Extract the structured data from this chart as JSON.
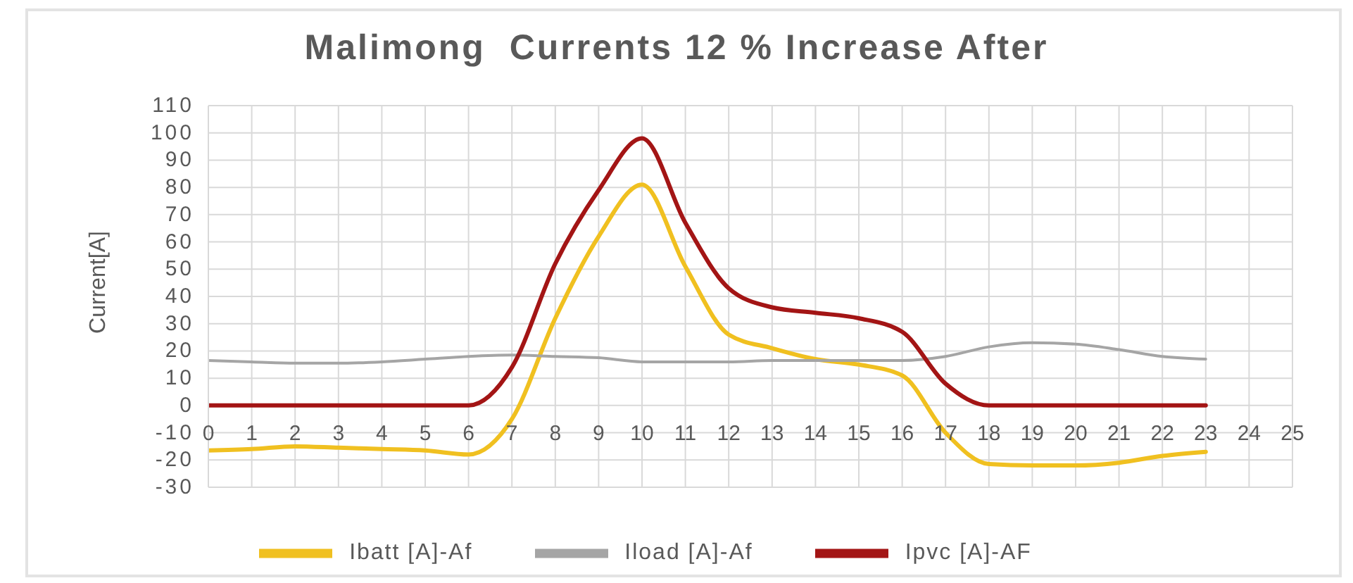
{
  "chart_data": {
    "type": "line",
    "title": "Malimong  Currents 12 % Increase After",
    "ylabel": "Current[A]",
    "x": [
      0,
      1,
      2,
      3,
      4,
      5,
      6,
      7,
      8,
      9,
      10,
      11,
      12,
      13,
      14,
      15,
      16,
      17,
      18,
      19,
      20,
      21,
      22,
      23
    ],
    "xlim": [
      0,
      25
    ],
    "xticks": [
      0,
      1,
      2,
      3,
      4,
      5,
      6,
      7,
      8,
      9,
      10,
      11,
      12,
      13,
      14,
      15,
      16,
      17,
      18,
      19,
      20,
      21,
      22,
      23,
      24,
      25
    ],
    "ylim": [
      -30,
      110
    ],
    "yticks": [
      -30,
      -20,
      -10,
      0,
      10,
      20,
      30,
      40,
      50,
      60,
      70,
      80,
      90,
      100,
      110
    ],
    "grid": true,
    "legend": "bottom",
    "marker": "none",
    "line_style": "solid",
    "series": [
      {
        "name": "Ibatt [A]-Af",
        "color": "#f0c020",
        "values": [
          -16.5,
          -16,
          -15,
          -15.5,
          -16,
          -16.5,
          -18,
          -5,
          32,
          62,
          81,
          51,
          26,
          21,
          17,
          15,
          11,
          -10,
          -21.5,
          -22,
          -22,
          -21,
          -18.5,
          -17
        ]
      },
      {
        "name": "Iload [A]-Af",
        "color": "#a5a5a5",
        "values": [
          16.5,
          16,
          15.5,
          15.5,
          16,
          17,
          18,
          18.5,
          18,
          17.5,
          16,
          16,
          16,
          16.5,
          16.5,
          16.5,
          16.5,
          18,
          21.5,
          23,
          22.5,
          20.5,
          18,
          17
        ]
      },
      {
        "name": "Ipvc [A]-AF",
        "color": "#a31515",
        "values": [
          0,
          0,
          0,
          0,
          0,
          0,
          0,
          14,
          52,
          79,
          98,
          67,
          43,
          36,
          34,
          32,
          27,
          8,
          0,
          0,
          0,
          0,
          0,
          0
        ]
      }
    ]
  }
}
